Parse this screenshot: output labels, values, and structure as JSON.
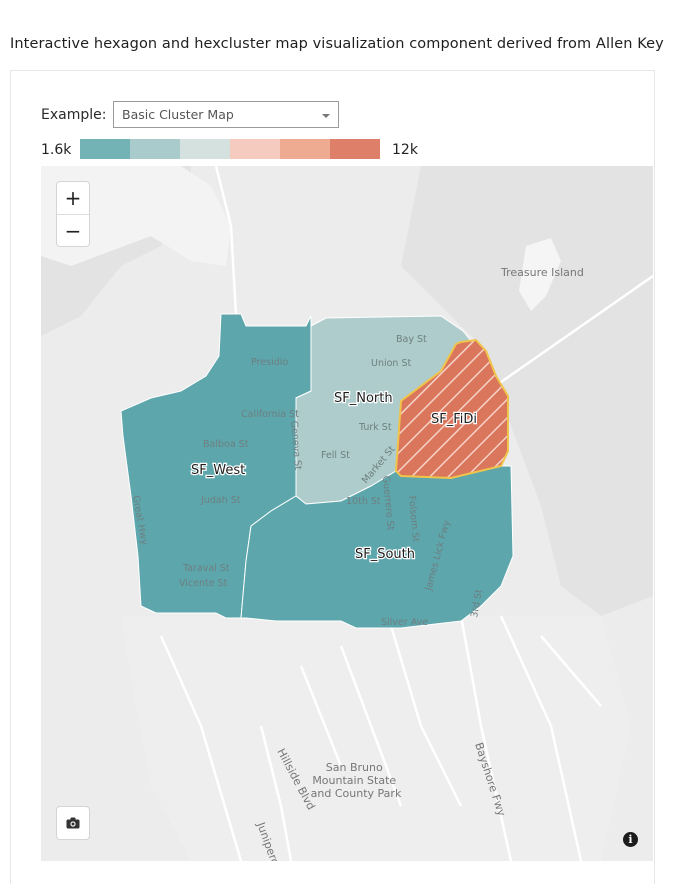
{
  "description": "Interactive hexagon and hexcluster map visualization component derived from Allen Key",
  "controls": {
    "example_label": "Example:",
    "example_selected": "Basic Cluster Map"
  },
  "legend": {
    "min_label": "1.6k",
    "max_label": "12k",
    "colors": [
      "#73b3b6",
      "#a9cbcc",
      "#d4e1df",
      "#f6cbbf",
      "#eeab92",
      "#de8069"
    ]
  },
  "map": {
    "clusters": [
      {
        "label": "SF_North",
        "color": "#a8c9c9"
      },
      {
        "label": "SF_West",
        "color": "#4f9fa6"
      },
      {
        "label": "SF_South",
        "color": "#4f9fa6"
      },
      {
        "label": "SF_FiDi",
        "color": "#d9765c"
      }
    ],
    "streets": [
      "Presidio",
      "Bay St",
      "Union St",
      "California St",
      "Balboa St",
      "Turk St",
      "Fell St",
      "Judah St",
      "Taraval St",
      "Vicente St",
      "Great Hwy",
      "Geneva St",
      "Market St",
      "Guerrero St",
      "Folsom St",
      "James Lick Fwy",
      "3rd St",
      "Silver Ave",
      "10th St"
    ],
    "places": [
      "Treasure Island",
      "San Bruno Mountain State and County Park",
      "Hillside Blvd",
      "Junipero",
      "Bayshore Fwy"
    ],
    "zoom_in": "+",
    "zoom_out": "−",
    "camera_icon": "camera-icon",
    "info_icon": "info-icon",
    "info_text": "i"
  }
}
